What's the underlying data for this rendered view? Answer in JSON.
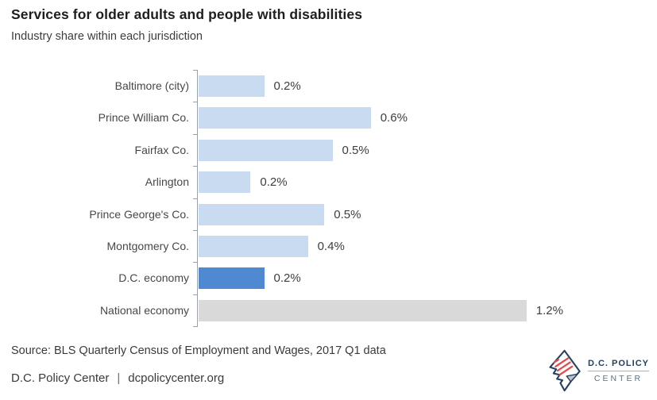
{
  "header": {
    "title": "Services for older adults and people with disabilities",
    "subtitle": "Industry share within each jurisdiction"
  },
  "chart_data": {
    "type": "bar",
    "orientation": "horizontal",
    "title": "Services for older adults and people with disabilities",
    "subtitle": "Industry share within each jurisdiction",
    "xlabel": "",
    "ylabel": "",
    "unit": "%",
    "grid": false,
    "legend": false,
    "xlim": [
      0,
      1.35
    ],
    "categories": [
      "Baltimore (city)",
      "Prince William Co.",
      "Fairfax Co.",
      "Arlington",
      "Prince George's Co.",
      "Montgomery Co.",
      "D.C. economy",
      "National economy"
    ],
    "values": [
      0.2,
      0.6,
      0.5,
      0.2,
      0.5,
      0.4,
      0.2,
      1.2
    ],
    "value_labels": [
      "0.2%",
      "0.6%",
      "0.5%",
      "0.2%",
      "0.5%",
      "0.4%",
      "0.2%",
      "1.2%"
    ],
    "bar_lengths_pct_estimated": [
      0.24,
      0.63,
      0.49,
      0.19,
      0.46,
      0.4,
      0.24,
      1.2
    ],
    "highlight_category": "D.C. economy",
    "colors": {
      "default": "#c9dbf0",
      "highlight": "#4e89d2",
      "national": "#d9d9d9",
      "axis": "#9aa1a8"
    }
  },
  "footer": {
    "source": "Source: BLS Quarterly Census of Employment and Wages, 2017 Q1 data",
    "brand": "D.C. Policy Center",
    "separator": "|",
    "website": "dcpolicycenter.org"
  },
  "logo": {
    "line1": "D.C. POLICY",
    "line2": "CENTER",
    "icon": "dc-map-flag-icon",
    "navy": "#27415f",
    "red": "#e8474b"
  }
}
